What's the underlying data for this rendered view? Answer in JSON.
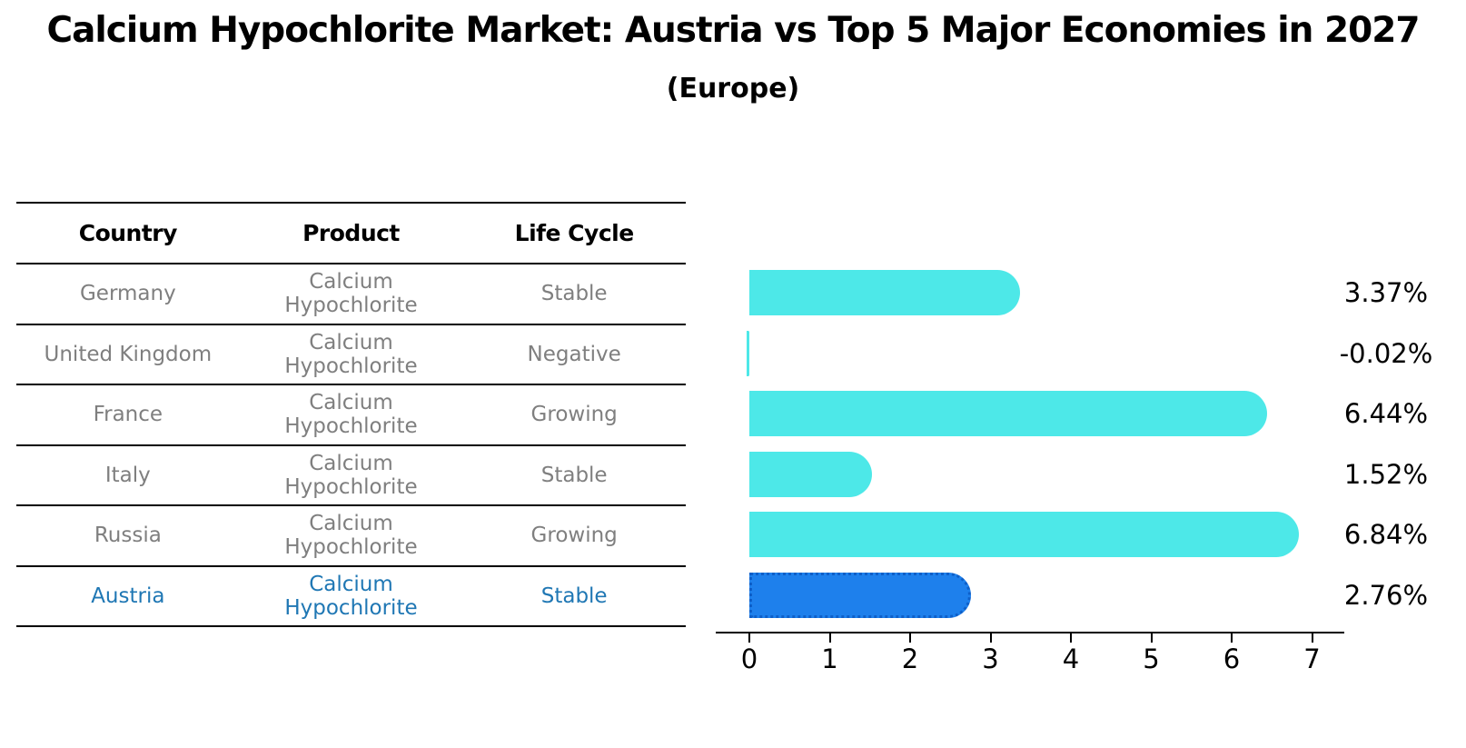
{
  "chart_data": {
    "type": "bar",
    "orientation": "horizontal",
    "title": "Calcium Hypochlorite Market: Austria vs Top 5 Major Economies in 2027",
    "subtitle": "(Europe)",
    "categories": [
      "Germany",
      "United Kingdom",
      "France",
      "Italy",
      "Russia",
      "Austria"
    ],
    "values": [
      3.37,
      -0.02,
      6.44,
      1.52,
      6.84,
      2.76
    ],
    "value_labels": [
      "3.37%",
      "-0.02%",
      "6.44%",
      "1.52%",
      "6.84%",
      "2.76%"
    ],
    "highlight_index": 5,
    "bar_color": "#4DE8E8",
    "highlight_bar_color": "#1E80EC",
    "highlight_bar_edge_color": "#0E5FC8",
    "xlabel": "",
    "ylabel": "",
    "x_ticks": [
      0,
      1,
      2,
      3,
      4,
      5,
      6,
      7
    ],
    "xlim": [
      -0.4,
      7.4
    ],
    "grid": false,
    "legend": null
  },
  "table": {
    "headers": [
      "Country",
      "Product",
      "Life Cycle"
    ],
    "rows": [
      [
        "Germany",
        "Calcium Hypochlorite",
        "Stable"
      ],
      [
        "United Kingdom",
        "Calcium Hypochlorite",
        "Negative"
      ],
      [
        "France",
        "Calcium Hypochlorite",
        "Growing"
      ],
      [
        "Italy",
        "Calcium Hypochlorite",
        "Stable"
      ],
      [
        "Russia",
        "Calcium Hypochlorite",
        "Growing"
      ],
      [
        "Austria",
        "Calcium Hypochlorite",
        "Stable"
      ]
    ],
    "highlight_row_index": 5,
    "text_color": "#7f7f7f",
    "header_text_color": "#000000",
    "highlight_text_color": "#1f77b4"
  }
}
